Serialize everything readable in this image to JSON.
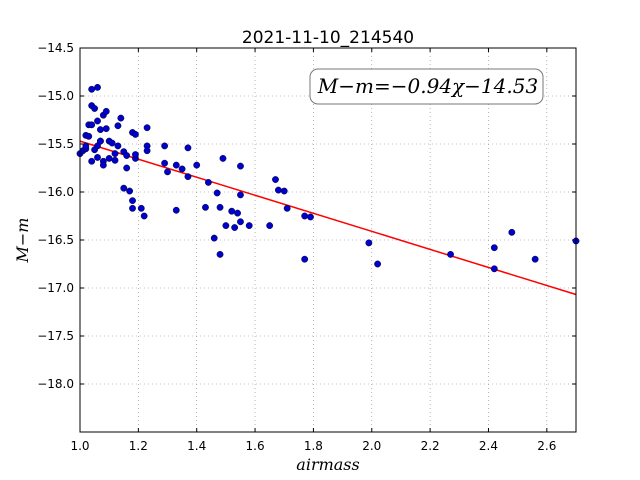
{
  "chart_data": {
    "type": "scatter",
    "title": "2021-11-10_214540",
    "xlabel": "airmass",
    "ylabel": "M−m",
    "xlim": [
      1.0,
      2.7
    ],
    "ylim": [
      -18.5,
      -14.5
    ],
    "y_inverted": true,
    "grid": true,
    "xticks": [
      "1.0",
      "1.2",
      "1.4",
      "1.6",
      "1.8",
      "2.0",
      "2.2",
      "2.4",
      "2.6"
    ],
    "yticks": [
      "−14.5",
      "−15.0",
      "−15.5",
      "−16.0",
      "−16.5",
      "−17.0",
      "−17.5",
      "−18.0"
    ],
    "annotation": "M−m=−0.94χ−14.53",
    "fit": {
      "slope": -0.94,
      "intercept": -14.53,
      "color": "#ff0000"
    },
    "marker_color": "#0000cc",
    "series": [
      {
        "points": [
          [
            1.0,
            -15.6
          ],
          [
            1.01,
            -15.57
          ],
          [
            1.02,
            -15.55
          ],
          [
            1.02,
            -15.52
          ],
          [
            1.02,
            -15.41
          ],
          [
            1.03,
            -15.3
          ],
          [
            1.03,
            -15.42
          ],
          [
            1.04,
            -15.3
          ],
          [
            1.04,
            -15.1
          ],
          [
            1.04,
            -14.93
          ],
          [
            1.04,
            -15.68
          ],
          [
            1.05,
            -15.13
          ],
          [
            1.05,
            -15.56
          ],
          [
            1.06,
            -14.91
          ],
          [
            1.06,
            -15.26
          ],
          [
            1.06,
            -15.52
          ],
          [
            1.06,
            -15.64
          ],
          [
            1.07,
            -15.35
          ],
          [
            1.07,
            -15.47
          ],
          [
            1.07,
            -15.47
          ],
          [
            1.08,
            -15.68
          ],
          [
            1.08,
            -15.72
          ],
          [
            1.08,
            -15.2
          ],
          [
            1.09,
            -15.16
          ],
          [
            1.09,
            -15.34
          ],
          [
            1.1,
            -15.47
          ],
          [
            1.1,
            -15.65
          ],
          [
            1.11,
            -15.49
          ],
          [
            1.12,
            -15.6
          ],
          [
            1.12,
            -15.67
          ],
          [
            1.13,
            -15.52
          ],
          [
            1.13,
            -15.31
          ],
          [
            1.14,
            -15.23
          ],
          [
            1.15,
            -15.58
          ],
          [
            1.15,
            -15.96
          ],
          [
            1.16,
            -15.75
          ],
          [
            1.16,
            -15.62
          ],
          [
            1.17,
            -15.99
          ],
          [
            1.18,
            -16.09
          ],
          [
            1.18,
            -16.17
          ],
          [
            1.18,
            -15.38
          ],
          [
            1.19,
            -15.4
          ],
          [
            1.19,
            -15.65
          ],
          [
            1.19,
            -15.61
          ],
          [
            1.21,
            -16.17
          ],
          [
            1.22,
            -16.25
          ],
          [
            1.23,
            -15.33
          ],
          [
            1.23,
            -15.52
          ],
          [
            1.23,
            -15.57
          ],
          [
            1.29,
            -15.52
          ],
          [
            1.29,
            -15.7
          ],
          [
            1.3,
            -15.79
          ],
          [
            1.33,
            -15.72
          ],
          [
            1.33,
            -16.19
          ],
          [
            1.35,
            -15.76
          ],
          [
            1.37,
            -15.54
          ],
          [
            1.37,
            -15.84
          ],
          [
            1.4,
            -15.72
          ],
          [
            1.43,
            -16.16
          ],
          [
            1.44,
            -15.9
          ],
          [
            1.46,
            -16.48
          ],
          [
            1.47,
            -16.01
          ],
          [
            1.48,
            -16.16
          ],
          [
            1.48,
            -16.65
          ],
          [
            1.49,
            -15.65
          ],
          [
            1.5,
            -16.35
          ],
          [
            1.52,
            -16.2
          ],
          [
            1.53,
            -16.37
          ],
          [
            1.54,
            -16.22
          ],
          [
            1.55,
            -16.03
          ],
          [
            1.55,
            -16.31
          ],
          [
            1.55,
            -15.73
          ],
          [
            1.58,
            -16.35
          ],
          [
            1.65,
            -16.35
          ],
          [
            1.67,
            -15.87
          ],
          [
            1.68,
            -15.98
          ],
          [
            1.7,
            -15.99
          ],
          [
            1.71,
            -16.17
          ],
          [
            1.77,
            -16.25
          ],
          [
            1.77,
            -16.7
          ],
          [
            1.79,
            -16.26
          ],
          [
            1.99,
            -16.53
          ],
          [
            2.02,
            -16.75
          ],
          [
            2.27,
            -16.65
          ],
          [
            2.42,
            -16.58
          ],
          [
            2.42,
            -16.8
          ],
          [
            2.48,
            -16.42
          ],
          [
            2.56,
            -16.7
          ],
          [
            2.7,
            -16.51
          ]
        ]
      }
    ]
  }
}
